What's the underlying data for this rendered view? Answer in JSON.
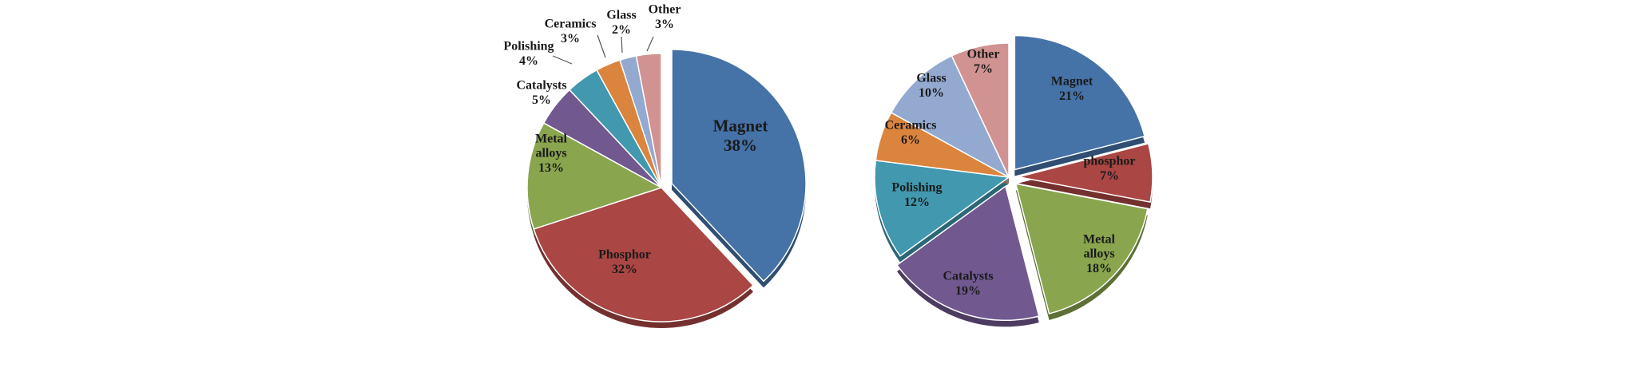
{
  "chart_data": [
    {
      "type": "pie",
      "title": "",
      "slices": [
        {
          "label": [
            "Magnet"
          ],
          "value": 38,
          "value_label": "38%",
          "color": "#4572a7"
        },
        {
          "label": [
            "Phosphor"
          ],
          "value": 32,
          "value_label": "32%",
          "color": "#aa4643"
        },
        {
          "label": [
            "Metal",
            "alloys"
          ],
          "value": 13,
          "value_label": "13%",
          "color": "#89a54e"
        },
        {
          "label": [
            "Catalysts"
          ],
          "value": 5,
          "value_label": "5%",
          "color": "#71588f"
        },
        {
          "label": [
            "Polishing"
          ],
          "value": 4,
          "value_label": "4%",
          "color": "#4198af"
        },
        {
          "label": [
            "Ceramics"
          ],
          "value": 3,
          "value_label": "3%",
          "color": "#db843d"
        },
        {
          "label": [
            "Glass"
          ],
          "value": 2,
          "value_label": "2%",
          "color": "#93a9cf"
        },
        {
          "label": [
            "Other"
          ],
          "value": 3,
          "value_label": "3%",
          "color": "#d19392"
        }
      ]
    },
    {
      "type": "pie",
      "title": "",
      "slices": [
        {
          "label": [
            "Magnet"
          ],
          "value": 21,
          "value_label": "21%",
          "color": "#4572a7"
        },
        {
          "label": [
            "phosphor"
          ],
          "value": 7,
          "value_label": "7%",
          "color": "#aa4643"
        },
        {
          "label": [
            "Metal",
            "alloys"
          ],
          "value": 18,
          "value_label": "18%",
          "color": "#89a54e"
        },
        {
          "label": [
            "Catalysts"
          ],
          "value": 19,
          "value_label": "19%",
          "color": "#71588f"
        },
        {
          "label": [
            "Polishing"
          ],
          "value": 12,
          "value_label": "12%",
          "color": "#4198af"
        },
        {
          "label": [
            "Ceramics"
          ],
          "value": 6,
          "value_label": "6%",
          "color": "#db843d"
        },
        {
          "label": [
            "Glass"
          ],
          "value": 10,
          "value_label": "10%",
          "color": "#93a9cf"
        },
        {
          "label": [
            "Other"
          ],
          "value": 7,
          "value_label": "7%",
          "color": "#d19392"
        }
      ]
    }
  ]
}
